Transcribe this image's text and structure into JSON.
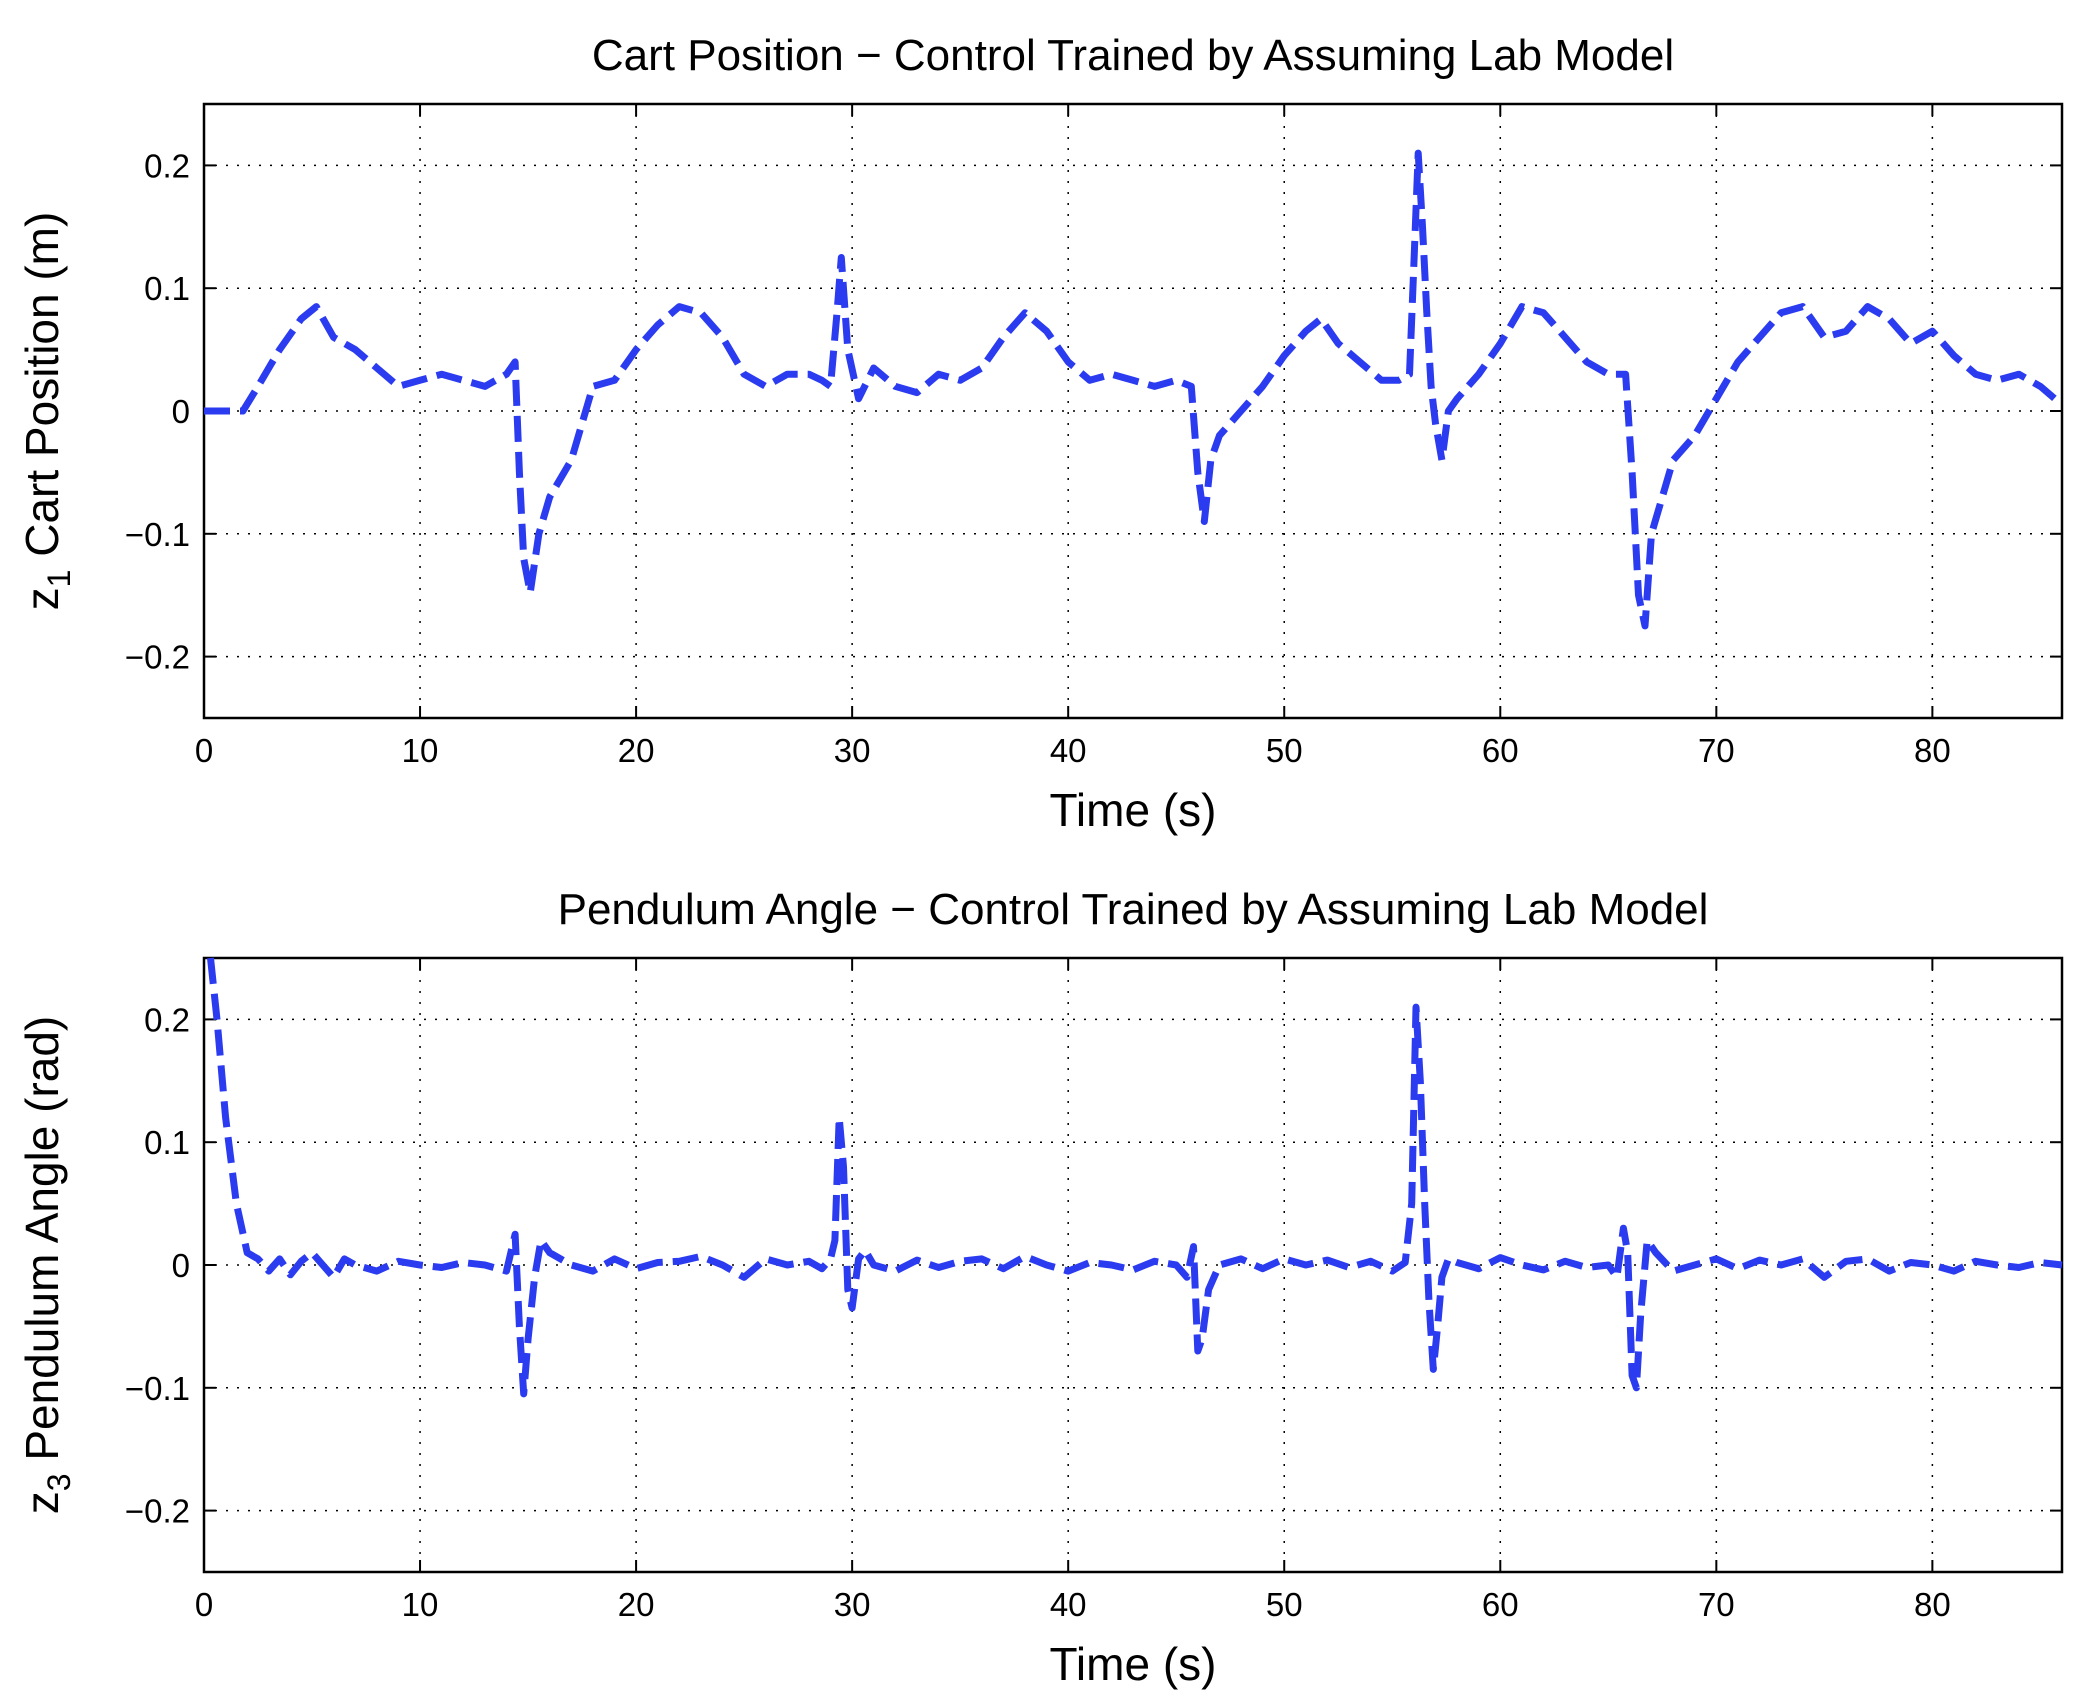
{
  "colors": {
    "series": "#2b3bf0"
  },
  "chart_data": [
    {
      "type": "line",
      "title": "Cart Position − Control Trained by Assuming Lab Model",
      "xlabel": "Time (s)",
      "ylabel_main": "z",
      "ylabel_sub": "1",
      "ylabel_rest": " Cart Position (m)",
      "xlim": [
        0,
        86
      ],
      "ylim": [
        -0.25,
        0.25
      ],
      "xticks": [
        0,
        10,
        20,
        30,
        40,
        50,
        60,
        70,
        80
      ],
      "xtick_labels": [
        "0",
        "10",
        "20",
        "30",
        "40",
        "50",
        "60",
        "70",
        "80"
      ],
      "yticks": [
        -0.2,
        -0.1,
        0,
        0.1,
        0.2
      ],
      "ytick_labels": [
        "−0.2",
        "−0.1",
        "0",
        "0.1",
        "0.2"
      ],
      "grid": true,
      "line_style": "dashed",
      "series": [
        {
          "name": "cart position",
          "x": [
            0,
            1.8,
            2.5,
            3.5,
            4.5,
            5.2,
            6,
            7,
            8,
            9,
            10,
            11,
            12,
            13,
            14,
            14.4,
            14.6,
            14.8,
            15.1,
            15.5,
            16,
            17,
            18,
            19,
            20,
            21,
            22,
            23,
            24,
            25,
            26,
            27,
            28,
            28.6,
            29,
            29.3,
            29.5,
            29.8,
            30.3,
            31,
            32,
            33,
            34,
            35,
            36,
            37,
            38,
            39,
            40,
            41,
            42,
            43,
            44,
            45,
            45.7,
            46,
            46.3,
            46.6,
            47,
            48,
            49,
            50,
            51,
            51.7,
            52.5,
            53.5,
            54.5,
            55.3,
            55.8,
            56,
            56.2,
            56.4,
            56.6,
            56.8,
            57,
            57.3,
            57.6,
            58,
            59,
            60,
            61,
            62,
            63,
            64,
            65,
            65.8,
            66.1,
            66.4,
            66.7,
            67,
            68,
            69,
            70,
            71,
            72,
            73,
            74,
            75,
            76,
            77,
            78,
            79,
            80,
            81,
            82,
            83,
            84,
            85,
            86
          ],
          "y": [
            0,
            0,
            0.02,
            0.05,
            0.075,
            0.085,
            0.06,
            0.05,
            0.035,
            0.02,
            0.025,
            0.03,
            0.025,
            0.02,
            0.03,
            0.04,
            -0.05,
            -0.12,
            -0.148,
            -0.1,
            -0.07,
            -0.04,
            0.02,
            0.025,
            0.05,
            0.07,
            0.085,
            0.08,
            0.06,
            0.03,
            0.02,
            0.03,
            0.03,
            0.025,
            0.02,
            0.08,
            0.125,
            0.05,
            0.01,
            0.035,
            0.02,
            0.015,
            0.03,
            0.025,
            0.035,
            0.06,
            0.08,
            0.065,
            0.04,
            0.025,
            0.03,
            0.025,
            0.02,
            0.025,
            0.02,
            -0.05,
            -0.09,
            -0.04,
            -0.02,
            0,
            0.02,
            0.045,
            0.065,
            0.075,
            0.055,
            0.04,
            0.025,
            0.025,
            0.03,
            0.12,
            0.21,
            0.15,
            0.08,
            0.02,
            -0.01,
            -0.04,
            0,
            0.01,
            0.03,
            0.055,
            0.085,
            0.08,
            0.06,
            0.04,
            0.03,
            0.03,
            -0.05,
            -0.15,
            -0.175,
            -0.1,
            -0.04,
            -0.02,
            0.01,
            0.04,
            0.06,
            0.08,
            0.085,
            0.06,
            0.065,
            0.085,
            0.075,
            0.055,
            0.065,
            0.045,
            0.03,
            0.025,
            0.03,
            0.02,
            0.005
          ]
        }
      ]
    },
    {
      "type": "line",
      "title": "Pendulum Angle − Control Trained by Assuming Lab Model",
      "xlabel": "Time (s)",
      "ylabel_main": "z",
      "ylabel_sub": "3",
      "ylabel_rest": " Pendulum Angle (rad)",
      "xlim": [
        0,
        86
      ],
      "ylim": [
        -0.25,
        0.25
      ],
      "xticks": [
        0,
        10,
        20,
        30,
        40,
        50,
        60,
        70,
        80
      ],
      "xtick_labels": [
        "0",
        "10",
        "20",
        "30",
        "40",
        "50",
        "60",
        "70",
        "80"
      ],
      "yticks": [
        -0.2,
        -0.1,
        0,
        0.1,
        0.2
      ],
      "ytick_labels": [
        "−0.2",
        "−0.1",
        "0",
        "0.1",
        "0.2"
      ],
      "grid": true,
      "line_style": "dashed",
      "series": [
        {
          "name": "pendulum angle",
          "x": [
            0.3,
            0.6,
            1,
            1.5,
            2,
            2.5,
            3,
            3.5,
            4,
            4.5,
            5,
            5.5,
            6,
            6.5,
            7,
            8,
            9,
            10,
            11,
            12,
            13,
            14,
            14.2,
            14.4,
            14.6,
            14.8,
            15,
            15.3,
            15.6,
            16,
            17,
            18,
            19,
            20,
            21,
            22,
            23,
            24,
            25,
            26,
            27,
            28,
            28.6,
            29,
            29.2,
            29.4,
            29.6,
            29.8,
            30,
            30.3,
            30.6,
            31,
            32,
            33,
            34,
            35,
            36,
            37,
            38,
            39,
            40,
            41,
            42,
            43,
            44,
            45,
            45.5,
            45.8,
            46,
            46.2,
            46.5,
            47,
            48,
            49,
            50,
            51,
            52,
            53,
            54,
            55,
            55.6,
            55.9,
            56.1,
            56.3,
            56.5,
            56.7,
            56.9,
            57.1,
            57.3,
            57.6,
            58,
            59,
            60,
            61,
            62,
            63,
            64,
            65,
            65.4,
            65.7,
            65.9,
            66.1,
            66.3,
            66.5,
            66.8,
            67.2,
            68,
            69,
            70,
            71,
            72,
            73,
            74,
            75,
            76,
            77,
            78,
            79,
            80,
            81,
            82,
            83,
            84,
            85,
            86
          ],
          "y": [
            0.25,
            0.2,
            0.12,
            0.05,
            0.01,
            0.005,
            -0.005,
            0.005,
            -0.008,
            0.003,
            0.01,
            0,
            -0.01,
            0.005,
            0,
            -0.005,
            0.003,
            0,
            -0.002,
            0.002,
            0,
            -0.005,
            0.01,
            0.025,
            -0.05,
            -0.105,
            -0.06,
            -0.01,
            0.02,
            0.01,
            0,
            -0.005,
            0.005,
            -0.003,
            0.002,
            0.003,
            0.007,
            0,
            -0.01,
            0.005,
            0,
            0.003,
            -0.003,
            0.005,
            0.02,
            0.12,
            0.08,
            -0.02,
            -0.035,
            0.005,
            0.012,
            0,
            -0.005,
            0.004,
            -0.002,
            0.003,
            0.005,
            -0.003,
            0.007,
            0,
            -0.005,
            0.002,
            0,
            -0.004,
            0.003,
            0,
            -0.01,
            0.015,
            -0.07,
            -0.06,
            -0.02,
            0,
            0.005,
            -0.003,
            0.005,
            0,
            0.004,
            -0.002,
            0.003,
            -0.005,
            0.002,
            0.05,
            0.21,
            0.15,
            0.05,
            -0.03,
            -0.085,
            -0.05,
            -0.01,
            0.005,
            0.002,
            -0.003,
            0.006,
            0,
            -0.004,
            0.003,
            -0.002,
            0,
            -0.01,
            0.03,
            0.01,
            -0.09,
            -0.1,
            -0.04,
            0.02,
            0.01,
            -0.005,
            0,
            0.005,
            -0.003,
            0.004,
            0,
            0.005,
            -0.01,
            0.003,
            0.005,
            -0.005,
            0.002,
            0,
            -0.005,
            0.003,
            0,
            -0.002,
            0.002,
            0
          ]
        }
      ]
    }
  ]
}
